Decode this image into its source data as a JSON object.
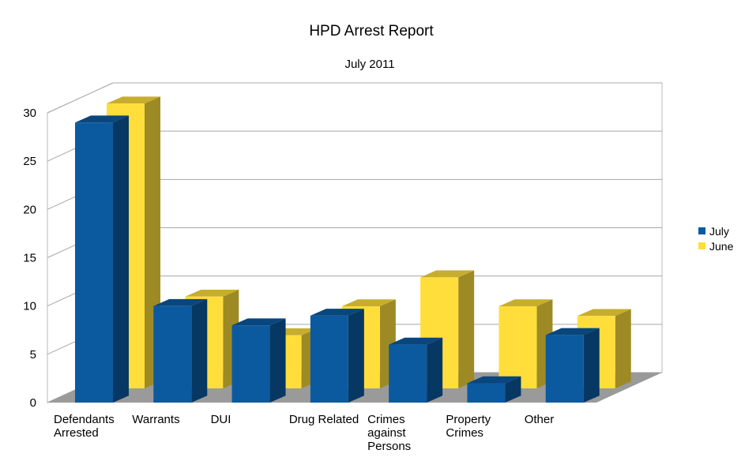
{
  "chart_data": {
    "type": "bar",
    "title": "HPD Arrest Report",
    "subtitle": "July 2011",
    "categories": [
      [
        "Defendants",
        "Arrested"
      ],
      [
        "Warrants"
      ],
      [
        "DUI"
      ],
      [
        "Drug Related"
      ],
      [
        "Crimes",
        "against",
        "Persons"
      ],
      [
        "Property",
        "Crimes"
      ],
      [
        "Other"
      ]
    ],
    "series": [
      {
        "name": "July",
        "values": [
          29,
          10,
          8,
          9,
          6,
          2,
          7
        ],
        "color": "#0b5aa0"
      },
      {
        "name": "June",
        "values": [
          29.5,
          9.5,
          5.5,
          8.5,
          11.5,
          8.5,
          7.5
        ],
        "color": "#ffde3b"
      }
    ],
    "ylim": [
      0,
      30
    ],
    "yticks": [
      "0",
      "5",
      "10",
      "15",
      "20",
      "25",
      "30"
    ],
    "xlabel": "",
    "ylabel": "",
    "grid": true,
    "legend": "right",
    "three_d": true
  }
}
